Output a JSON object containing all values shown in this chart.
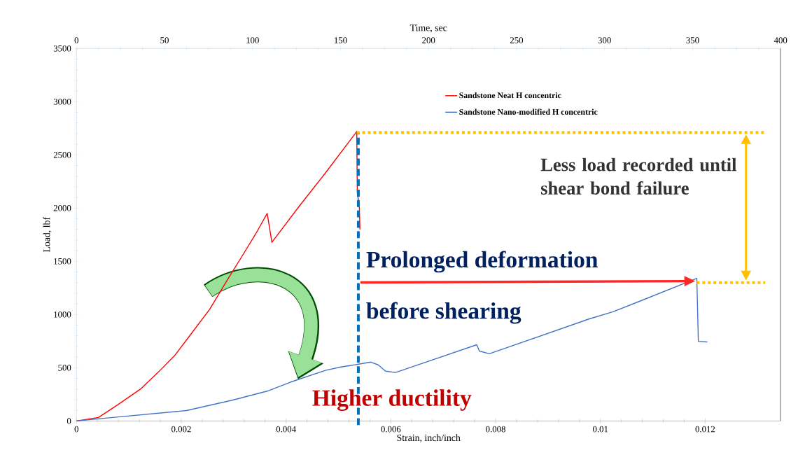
{
  "chart_data": {
    "type": "line",
    "xlabel": "Strain, inch/inch",
    "ylabel": "Load, lbf",
    "x2label": "Time, sec",
    "xlim": [
      0,
      0.01344
    ],
    "xticks": [
      0,
      0.002,
      0.004,
      0.006,
      0.008,
      0.01,
      0.012
    ],
    "ylim": [
      0,
      3500
    ],
    "yticks": [
      0,
      500,
      1000,
      1500,
      2000,
      2500,
      3000,
      3500
    ],
    "x2lim": [
      0,
      400
    ],
    "x2ticks": [
      0,
      50,
      100,
      150,
      200,
      250,
      300,
      350,
      400
    ],
    "legend": "top right",
    "marker": "none",
    "line_style": "solid",
    "series": [
      {
        "name": "Sandstone Neat H concentric",
        "color": "#ff0000",
        "x": [
          0,
          0.00042,
          0.00082,
          0.00122,
          0.00157,
          0.00188,
          0.00218,
          0.00254,
          0.00289,
          0.00316,
          0.00342,
          0.00364,
          0.00373,
          0.00426,
          0.00475,
          0.00535,
          0.00536,
          0.0054,
          0.00541
        ],
        "values": [
          0,
          33,
          163,
          299,
          462,
          618,
          813,
          1047,
          1334,
          1548,
          1757,
          1950,
          1679,
          2023,
          2329,
          2720,
          2150,
          2000,
          1800
        ]
      },
      {
        "name": "Sandstone Nano-modified H concentric",
        "color": "#4472c4",
        "x": [
          0,
          0.00069,
          0.0021,
          0.00297,
          0.00364,
          0.00408,
          0.00475,
          0.00505,
          0.00522,
          0.00562,
          0.00576,
          0.0059,
          0.00609,
          0.00764,
          0.00769,
          0.00788,
          0.00977,
          0.01025,
          0.01072,
          0.01184,
          0.01187,
          0.01204
        ],
        "values": [
          0,
          33,
          98,
          195,
          280,
          364,
          475,
          507,
          520,
          553,
          527,
          468,
          455,
          716,
          657,
          631,
          956,
          1028,
          1119,
          1340,
          748,
          742
        ]
      }
    ],
    "ref_lines": [
      {
        "axis": "x",
        "value": 0.00538,
        "color": "#0070c0",
        "line_style": "dashed"
      },
      {
        "axis": "y",
        "value": 2710,
        "color": "#ffc000",
        "line_style": "dotted"
      },
      {
        "axis": "y",
        "value": 1300,
        "color": "#ffc000",
        "line_style": "dotted"
      }
    ],
    "annotations": [
      "Less load recorded until shear bond failure",
      "Prolonged deformation",
      "before shearing",
      "Higher ductility"
    ]
  }
}
